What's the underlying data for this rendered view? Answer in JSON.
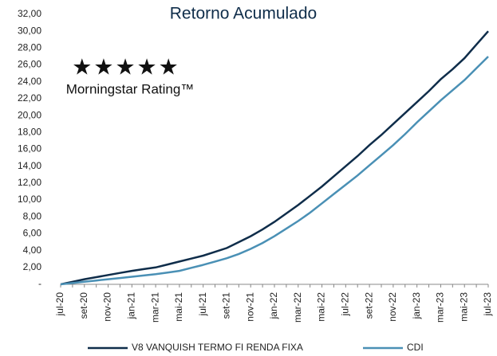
{
  "chart_data": {
    "type": "line",
    "title": "Retorno Acumulado",
    "annotations": [
      "★★★★★",
      "Morningstar Rating™"
    ],
    "categories": [
      "jul-20",
      null,
      "set-20",
      null,
      "nov-20",
      null,
      "jan-21",
      null,
      "mar-21",
      null,
      "mai-21",
      null,
      "jul-21",
      null,
      "set-21",
      null,
      "nov-21",
      null,
      "jan-22",
      null,
      "mar-22",
      null,
      "mai-22",
      null,
      "jul-22",
      null,
      "set-22",
      null,
      "nov-22",
      null,
      "jan-23",
      null,
      "mar-23",
      null,
      "mai-23",
      null,
      "jul-23"
    ],
    "series": [
      {
        "name": "V8 VANQUISH TERMO FI RENDA FIXA",
        "color": "#0f2d4a",
        "values": [
          0,
          0.3,
          0.6,
          0.85,
          1.1,
          1.35,
          1.6,
          1.8,
          2.0,
          2.35,
          2.7,
          3.05,
          3.4,
          3.85,
          4.3,
          5.0,
          5.7,
          6.5,
          7.4,
          8.4,
          9.4,
          10.5,
          11.6,
          12.8,
          14.0,
          15.2,
          16.5,
          17.7,
          19.0,
          20.3,
          21.6,
          22.9,
          24.3,
          25.5,
          26.8,
          28.4,
          30.0
        ]
      },
      {
        "name": "CDI",
        "color": "#4a90b5",
        "values": [
          0,
          0.15,
          0.3,
          0.45,
          0.6,
          0.75,
          0.9,
          1.05,
          1.2,
          1.4,
          1.6,
          1.95,
          2.3,
          2.7,
          3.1,
          3.6,
          4.2,
          4.9,
          5.7,
          6.6,
          7.5,
          8.5,
          9.6,
          10.7,
          11.8,
          12.9,
          14.1,
          15.3,
          16.5,
          17.8,
          19.2,
          20.5,
          21.8,
          23.0,
          24.2,
          25.6,
          27.0
        ]
      }
    ],
    "ylim": [
      0,
      32
    ],
    "yticks": [
      {
        "value": 0,
        "label": "-"
      },
      {
        "value": 2,
        "label": "2,00"
      },
      {
        "value": 4,
        "label": "4,00"
      },
      {
        "value": 6,
        "label": "6,00"
      },
      {
        "value": 8,
        "label": "8,00"
      },
      {
        "value": 10,
        "label": "10,00"
      },
      {
        "value": 12,
        "label": "12,00"
      },
      {
        "value": 14,
        "label": "14,00"
      },
      {
        "value": 16,
        "label": "16,00"
      },
      {
        "value": 18,
        "label": "18,00"
      },
      {
        "value": 20,
        "label": "20,00"
      },
      {
        "value": 22,
        "label": "22,00"
      },
      {
        "value": 24,
        "label": "24,00"
      },
      {
        "value": 26,
        "label": "26,00"
      },
      {
        "value": 28,
        "label": "28,00"
      },
      {
        "value": 30,
        "label": "30,00"
      },
      {
        "value": 32,
        "label": "32,00"
      }
    ],
    "grid": false,
    "legend": "bottom"
  }
}
